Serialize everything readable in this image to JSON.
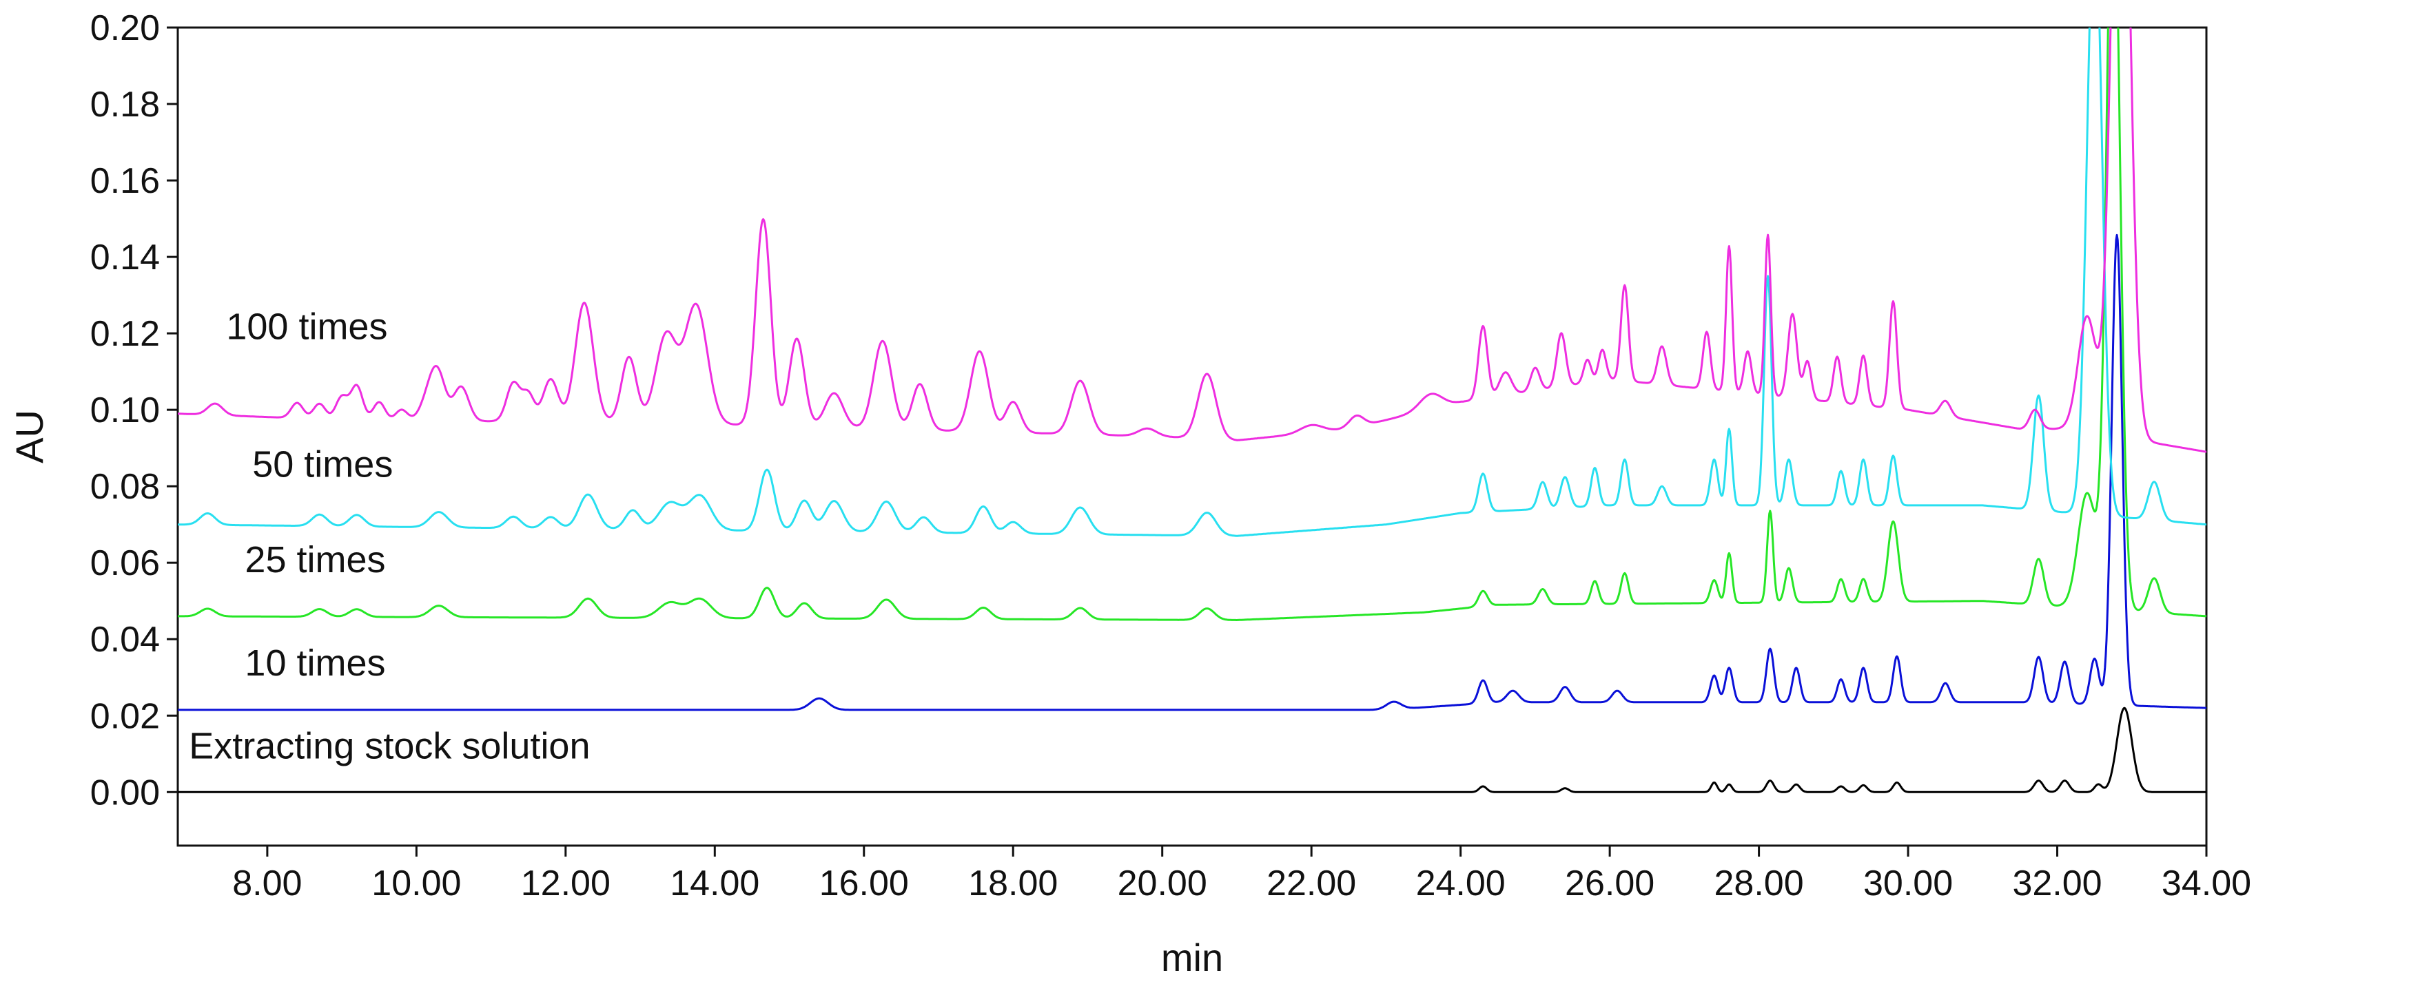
{
  "chart_data": {
    "type": "line",
    "xlabel": "min",
    "ylabel": "AU",
    "xlim": [
      6.8,
      34.0
    ],
    "ylim": [
      -0.014,
      0.2
    ],
    "grid": false,
    "x_ticks": [
      "8.00",
      "10.00",
      "12.00",
      "14.00",
      "16.00",
      "18.00",
      "20.00",
      "22.00",
      "24.00",
      "26.00",
      "28.00",
      "30.00",
      "32.00",
      "34.00"
    ],
    "y_ticks": [
      "0.00",
      "0.02",
      "0.04",
      "0.06",
      "0.08",
      "0.10",
      "0.12",
      "0.14",
      "0.16",
      "0.18",
      "0.20"
    ],
    "series": [
      {
        "name": "Extracting stock solution",
        "color": "#000000",
        "label_position": [
          6.95,
          0.0088
        ],
        "baseline": [
          [
            6.8,
            0.0
          ],
          [
            24.0,
            0.0
          ],
          [
            34.0,
            0.0
          ]
        ],
        "peaks": [
          [
            24.3,
            0.0015,
            0.05
          ],
          [
            25.4,
            0.001,
            0.05
          ],
          [
            27.4,
            0.0025,
            0.04
          ],
          [
            27.6,
            0.002,
            0.04
          ],
          [
            28.15,
            0.003,
            0.05
          ],
          [
            28.5,
            0.002,
            0.05
          ],
          [
            29.1,
            0.0015,
            0.05
          ],
          [
            29.4,
            0.0018,
            0.05
          ],
          [
            29.85,
            0.0025,
            0.05
          ],
          [
            31.75,
            0.003,
            0.06
          ],
          [
            32.1,
            0.003,
            0.06
          ],
          [
            32.55,
            0.002,
            0.05
          ],
          [
            32.9,
            0.022,
            0.1
          ]
        ]
      },
      {
        "name": "10 times",
        "color": "#0a10d8",
        "label_position": [
          7.7,
          0.0305
        ],
        "baseline": [
          [
            6.8,
            0.0215
          ],
          [
            23.0,
            0.0215
          ],
          [
            24.5,
            0.0235
          ],
          [
            31.5,
            0.0235
          ],
          [
            34.0,
            0.022
          ]
        ],
        "peaks": [
          [
            15.4,
            0.003,
            0.12
          ],
          [
            23.1,
            0.002,
            0.1
          ],
          [
            24.3,
            0.006,
            0.06
          ],
          [
            24.7,
            0.003,
            0.08
          ],
          [
            25.4,
            0.004,
            0.07
          ],
          [
            26.1,
            0.003,
            0.07
          ],
          [
            27.4,
            0.007,
            0.05
          ],
          [
            27.6,
            0.009,
            0.05
          ],
          [
            28.15,
            0.014,
            0.05
          ],
          [
            28.5,
            0.009,
            0.05
          ],
          [
            29.1,
            0.006,
            0.05
          ],
          [
            29.4,
            0.009,
            0.05
          ],
          [
            29.85,
            0.012,
            0.05
          ],
          [
            30.5,
            0.005,
            0.06
          ],
          [
            31.75,
            0.012,
            0.06
          ],
          [
            32.1,
            0.011,
            0.06
          ],
          [
            32.5,
            0.012,
            0.06
          ],
          [
            32.8,
            0.123,
            0.07
          ]
        ]
      },
      {
        "name": "25 times",
        "color": "#26e626",
        "label_position": [
          7.7,
          0.0575
        ],
        "baseline": [
          [
            6.8,
            0.046
          ],
          [
            21.0,
            0.045
          ],
          [
            23.5,
            0.047
          ],
          [
            24.5,
            0.049
          ],
          [
            31.0,
            0.05
          ],
          [
            34.0,
            0.046
          ]
        ],
        "peaks": [
          [
            7.2,
            0.002,
            0.1
          ],
          [
            8.7,
            0.002,
            0.1
          ],
          [
            9.2,
            0.002,
            0.1
          ],
          [
            10.3,
            0.003,
            0.12
          ],
          [
            12.3,
            0.005,
            0.12
          ],
          [
            13.4,
            0.004,
            0.15
          ],
          [
            13.8,
            0.005,
            0.15
          ],
          [
            14.7,
            0.008,
            0.1
          ],
          [
            15.2,
            0.004,
            0.1
          ],
          [
            16.3,
            0.005,
            0.12
          ],
          [
            17.6,
            0.003,
            0.1
          ],
          [
            18.9,
            0.003,
            0.1
          ],
          [
            20.6,
            0.003,
            0.1
          ],
          [
            24.3,
            0.004,
            0.06
          ],
          [
            25.1,
            0.004,
            0.06
          ],
          [
            25.8,
            0.006,
            0.05
          ],
          [
            26.2,
            0.008,
            0.05
          ],
          [
            27.4,
            0.006,
            0.05
          ],
          [
            27.6,
            0.013,
            0.04
          ],
          [
            28.15,
            0.024,
            0.04
          ],
          [
            28.4,
            0.009,
            0.05
          ],
          [
            29.1,
            0.006,
            0.05
          ],
          [
            29.4,
            0.006,
            0.05
          ],
          [
            29.8,
            0.021,
            0.07
          ],
          [
            31.75,
            0.012,
            0.07
          ],
          [
            32.4,
            0.03,
            0.12
          ],
          [
            32.75,
            0.2,
            0.09
          ],
          [
            33.3,
            0.009,
            0.08
          ]
        ]
      },
      {
        "name": "50 times",
        "color": "#28dff0",
        "label_position": [
          7.8,
          0.0825
        ],
        "baseline": [
          [
            6.8,
            0.07
          ],
          [
            21.0,
            0.067
          ],
          [
            23.0,
            0.07
          ],
          [
            24.0,
            0.073
          ],
          [
            26.0,
            0.075
          ],
          [
            31.0,
            0.075
          ],
          [
            34.0,
            0.07
          ]
        ],
        "peaks": [
          [
            7.2,
            0.003,
            0.1
          ],
          [
            8.7,
            0.003,
            0.1
          ],
          [
            9.2,
            0.003,
            0.1
          ],
          [
            10.3,
            0.004,
            0.12
          ],
          [
            11.3,
            0.003,
            0.1
          ],
          [
            11.8,
            0.003,
            0.1
          ],
          [
            12.3,
            0.009,
            0.12
          ],
          [
            12.9,
            0.005,
            0.1
          ],
          [
            13.4,
            0.007,
            0.15
          ],
          [
            13.8,
            0.009,
            0.15
          ],
          [
            14.7,
            0.016,
            0.1
          ],
          [
            15.2,
            0.008,
            0.1
          ],
          [
            15.6,
            0.008,
            0.12
          ],
          [
            16.3,
            0.008,
            0.12
          ],
          [
            16.8,
            0.004,
            0.1
          ],
          [
            17.6,
            0.007,
            0.1
          ],
          [
            18.0,
            0.003,
            0.1
          ],
          [
            18.9,
            0.007,
            0.12
          ],
          [
            20.6,
            0.006,
            0.12
          ],
          [
            24.3,
            0.01,
            0.06
          ],
          [
            25.1,
            0.007,
            0.06
          ],
          [
            25.4,
            0.008,
            0.06
          ],
          [
            25.8,
            0.01,
            0.05
          ],
          [
            26.2,
            0.012,
            0.05
          ],
          [
            26.7,
            0.005,
            0.06
          ],
          [
            27.4,
            0.012,
            0.05
          ],
          [
            27.6,
            0.02,
            0.04
          ],
          [
            28.12,
            0.06,
            0.05
          ],
          [
            28.4,
            0.012,
            0.05
          ],
          [
            29.1,
            0.009,
            0.05
          ],
          [
            29.4,
            0.012,
            0.05
          ],
          [
            29.8,
            0.013,
            0.05
          ],
          [
            31.75,
            0.03,
            0.07
          ],
          [
            32.5,
            0.16,
            0.1
          ],
          [
            33.3,
            0.01,
            0.08
          ]
        ]
      },
      {
        "name": "100 times",
        "color": "#ee2ee0",
        "label_position": [
          7.45,
          0.1185
        ],
        "baseline": [
          [
            6.8,
            0.099
          ],
          [
            9.5,
            0.097
          ],
          [
            12.5,
            0.097
          ],
          [
            20.0,
            0.093
          ],
          [
            21.0,
            0.092
          ],
          [
            22.5,
            0.095
          ],
          [
            24.0,
            0.102
          ],
          [
            26.0,
            0.108
          ],
          [
            30.0,
            0.1
          ],
          [
            31.5,
            0.095
          ],
          [
            32.2,
            0.095
          ],
          [
            34.0,
            0.089
          ]
        ],
        "peaks": [
          [
            7.3,
            0.003,
            0.1
          ],
          [
            8.4,
            0.004,
            0.08
          ],
          [
            8.7,
            0.004,
            0.08
          ],
          [
            9.0,
            0.006,
            0.08
          ],
          [
            9.2,
            0.009,
            0.08
          ],
          [
            9.5,
            0.005,
            0.08
          ],
          [
            9.8,
            0.003,
            0.08
          ],
          [
            10.2,
            0.008,
            0.12
          ],
          [
            10.3,
            0.008,
            0.1
          ],
          [
            10.6,
            0.009,
            0.1
          ],
          [
            11.3,
            0.01,
            0.09
          ],
          [
            11.5,
            0.007,
            0.08
          ],
          [
            11.8,
            0.011,
            0.1
          ],
          [
            12.25,
            0.031,
            0.12
          ],
          [
            12.85,
            0.017,
            0.1
          ],
          [
            13.35,
            0.023,
            0.14
          ],
          [
            13.75,
            0.031,
            0.15
          ],
          [
            14.65,
            0.054,
            0.1
          ],
          [
            15.1,
            0.023,
            0.1
          ],
          [
            15.6,
            0.009,
            0.12
          ],
          [
            16.25,
            0.023,
            0.12
          ],
          [
            16.75,
            0.012,
            0.1
          ],
          [
            17.55,
            0.021,
            0.12
          ],
          [
            18.0,
            0.008,
            0.1
          ],
          [
            18.9,
            0.014,
            0.12
          ],
          [
            19.8,
            0.002,
            0.12
          ],
          [
            20.6,
            0.017,
            0.12
          ],
          [
            22.0,
            0.002,
            0.15
          ],
          [
            22.6,
            0.003,
            0.1
          ],
          [
            23.6,
            0.004,
            0.15
          ],
          [
            24.3,
            0.019,
            0.06
          ],
          [
            24.6,
            0.006,
            0.08
          ],
          [
            25.0,
            0.006,
            0.06
          ],
          [
            25.35,
            0.014,
            0.06
          ],
          [
            25.7,
            0.006,
            0.05
          ],
          [
            25.9,
            0.008,
            0.05
          ],
          [
            26.2,
            0.025,
            0.05
          ],
          [
            26.7,
            0.01,
            0.06
          ],
          [
            27.3,
            0.015,
            0.05
          ],
          [
            27.6,
            0.038,
            0.04
          ],
          [
            27.85,
            0.011,
            0.05
          ],
          [
            28.12,
            0.042,
            0.04
          ],
          [
            28.45,
            0.022,
            0.06
          ],
          [
            28.65,
            0.01,
            0.05
          ],
          [
            29.05,
            0.012,
            0.05
          ],
          [
            29.4,
            0.013,
            0.05
          ],
          [
            29.8,
            0.028,
            0.05
          ],
          [
            30.5,
            0.004,
            0.07
          ],
          [
            31.7,
            0.005,
            0.07
          ],
          [
            32.4,
            0.03,
            0.12
          ],
          [
            32.85,
            0.2,
            0.12
          ]
        ]
      }
    ]
  }
}
